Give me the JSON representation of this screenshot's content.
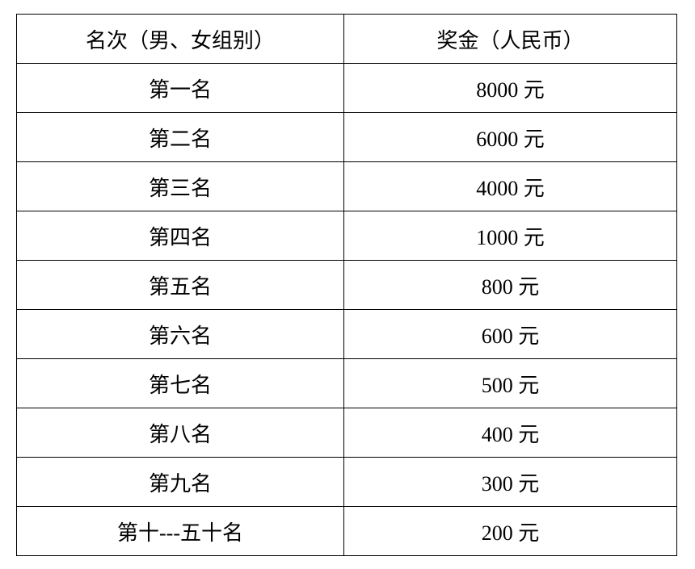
{
  "table": {
    "headers": [
      "名次（男、女组别）",
      "奖金（人民币）"
    ],
    "rows": [
      [
        "第一名",
        "8000 元"
      ],
      [
        "第二名",
        "6000 元"
      ],
      [
        "第三名",
        "4000 元"
      ],
      [
        "第四名",
        "1000 元"
      ],
      [
        "第五名",
        "800 元"
      ],
      [
        "第六名",
        "600 元"
      ],
      [
        "第七名",
        "500 元"
      ],
      [
        "第八名",
        "400 元"
      ],
      [
        "第九名",
        "300 元"
      ],
      [
        "第十---五十名",
        "200 元"
      ]
    ]
  }
}
